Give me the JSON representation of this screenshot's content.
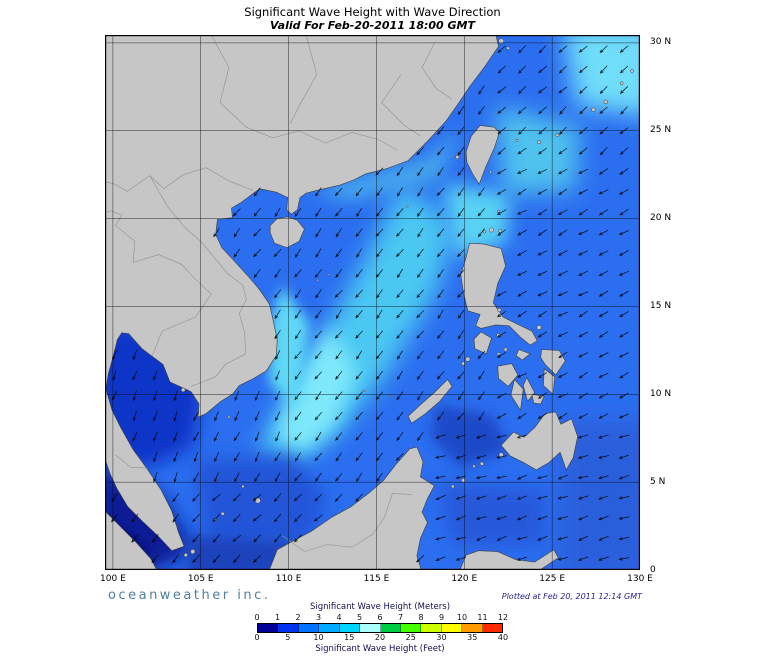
{
  "header": {
    "title": "Significant Wave Height with Wave Direction",
    "subtitle": "Valid For Feb-20-2011 18:00 GMT"
  },
  "axes": {
    "lon_labels": [
      "100 E",
      "105 E",
      "110 E",
      "115 E",
      "120 E",
      "125 E",
      "130 E"
    ],
    "lon_values": [
      100,
      105,
      110,
      115,
      120,
      125,
      130
    ],
    "lat_labels": [
      "30 N",
      "25 N",
      "20 N",
      "15 N",
      "10 N",
      "5 N",
      "0"
    ],
    "lat_values": [
      30,
      25,
      20,
      15,
      10,
      5,
      0
    ]
  },
  "legend": {
    "meters_title": "Significant Wave Height (Meters)",
    "feet_title": "Significant Wave Height (Feet)",
    "meters_ticks": [
      "0",
      "1",
      "2",
      "3",
      "4",
      "5",
      "6",
      "7",
      "8",
      "9",
      "10",
      "11",
      "12"
    ],
    "feet_ticks": [
      "0",
      "5",
      "10",
      "15",
      "20",
      "25",
      "30",
      "35",
      "40"
    ],
    "colors": [
      "#000099",
      "#0033f0",
      "#0073ff",
      "#00aaff",
      "#00d5ff",
      "#aaffff",
      "#00cc44",
      "#44ff00",
      "#ccff00",
      "#ffff00",
      "#ff9900",
      "#ff2a00"
    ]
  },
  "credits": {
    "brand": "oceanweather inc.",
    "plotted": "Plotted at Feb 20, 2011 12:14 GMT"
  },
  "map": {
    "land_color": "#c6c6c6",
    "coast_color": "#3c3c3c",
    "border_color": "#909090",
    "grid_color": "#000000",
    "arrow_color": "#000000",
    "sea_base": "#2b6ef0",
    "regions": {
      "gulf_of_thailand": "#0f35c8",
      "malacca_strait": "#0a1f96",
      "malacca_corner": "#041060",
      "central_scs": "#4cc8f2",
      "scs_core": "#7fe8fb",
      "vietnam_coast": "#5ed8f6",
      "luzon_strait": "#58d2f4",
      "east_of_taiwan": "#4fc2ee",
      "northeast_corner": "#70defa",
      "china_coast": "#46aaec",
      "sulu_sea": "#1e49c8",
      "celebes_sea": "#2659da",
      "south_scs": "#2355d8",
      "java_sea": "#1c42bc",
      "pacific_south": "#2a5fdc"
    }
  }
}
